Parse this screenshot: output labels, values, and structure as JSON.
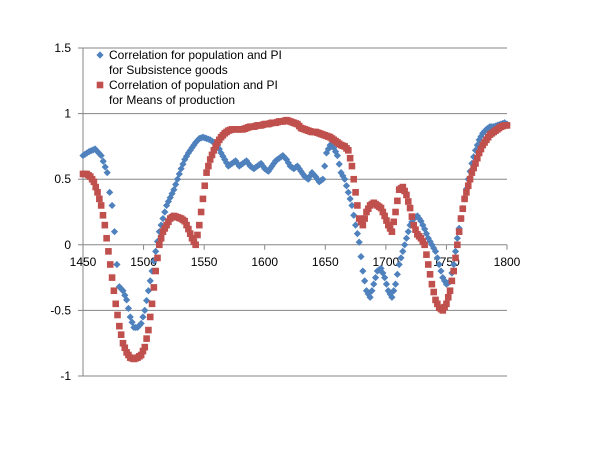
{
  "chart_data": {
    "type": "scatter",
    "title": "",
    "xlabel": "",
    "ylabel": "",
    "xlim": [
      1450,
      1800
    ],
    "ylim": [
      -1,
      1.5
    ],
    "xticks": [
      1450,
      1500,
      1550,
      1600,
      1650,
      1700,
      1750,
      1800
    ],
    "yticks": [
      -1,
      -0.5,
      0,
      0.5,
      1,
      1.5
    ],
    "grid": "horizontal",
    "legend": {
      "position": "top-left",
      "entries": [
        [
          "Correlation for population  and  PI",
          "for Subsistence  goods"
        ],
        [
          "Correlation of population  and  PI",
          "for Means of production"
        ]
      ]
    },
    "series": [
      {
        "name": "Correlation for population  and  PI for Subsistence  goods",
        "marker": "diamond",
        "color": "#4f81bd",
        "x": [
          1450,
          1455,
          1460,
          1465,
          1470,
          1472,
          1474,
          1476,
          1478,
          1480,
          1483,
          1486,
          1489,
          1492,
          1495,
          1498,
          1501,
          1504,
          1507,
          1510,
          1513,
          1516,
          1519,
          1522,
          1525,
          1528,
          1531,
          1534,
          1537,
          1540,
          1543,
          1546,
          1549,
          1552,
          1555,
          1558,
          1561,
          1564,
          1567,
          1570,
          1573,
          1576,
          1579,
          1582,
          1585,
          1588,
          1591,
          1594,
          1597,
          1600,
          1603,
          1606,
          1609,
          1612,
          1615,
          1618,
          1621,
          1624,
          1627,
          1630,
          1633,
          1636,
          1639,
          1642,
          1645,
          1648,
          1651,
          1654,
          1657,
          1660,
          1663,
          1666,
          1669,
          1672,
          1675,
          1678,
          1681,
          1684,
          1687,
          1690,
          1693,
          1696,
          1699,
          1702,
          1705,
          1708,
          1711,
          1714,
          1717,
          1720,
          1723,
          1726,
          1729,
          1732,
          1735,
          1738,
          1741,
          1744,
          1747,
          1750,
          1753,
          1756,
          1759,
          1762,
          1765,
          1768,
          1771,
          1774,
          1777,
          1780,
          1783,
          1786,
          1789,
          1792,
          1795,
          1798,
          1800
        ],
        "y": [
          0.68,
          0.71,
          0.73,
          0.68,
          0.55,
          0.4,
          0.3,
          0.1,
          -0.15,
          -0.32,
          -0.35,
          -0.42,
          -0.55,
          -0.63,
          -0.63,
          -0.6,
          -0.5,
          -0.35,
          -0.2,
          -0.05,
          0.1,
          0.2,
          0.3,
          0.36,
          0.42,
          0.5,
          0.58,
          0.65,
          0.7,
          0.74,
          0.78,
          0.81,
          0.82,
          0.81,
          0.8,
          0.78,
          0.76,
          0.7,
          0.65,
          0.6,
          0.62,
          0.64,
          0.6,
          0.62,
          0.64,
          0.6,
          0.58,
          0.6,
          0.62,
          0.58,
          0.56,
          0.6,
          0.64,
          0.66,
          0.68,
          0.65,
          0.6,
          0.58,
          0.6,
          0.56,
          0.52,
          0.5,
          0.55,
          0.52,
          0.48,
          0.5,
          0.7,
          0.76,
          0.74,
          0.68,
          0.55,
          0.5,
          0.4,
          0.3,
          0.15,
          0.02,
          -0.2,
          -0.35,
          -0.4,
          -0.3,
          -0.2,
          -0.18,
          -0.25,
          -0.35,
          -0.4,
          -0.3,
          -0.15,
          -0.05,
          0.05,
          0.15,
          0.2,
          0.22,
          0.18,
          0.12,
          0.05,
          0.0,
          -0.05,
          -0.15,
          -0.25,
          -0.3,
          -0.28,
          -0.15,
          0.05,
          0.2,
          0.35,
          0.5,
          0.62,
          0.72,
          0.8,
          0.85,
          0.88,
          0.9,
          0.9,
          0.91,
          0.92,
          0.93,
          0.92
        ]
      },
      {
        "name": "Correlation of population  and  PI for Means of production",
        "marker": "square",
        "color": "#c0504d",
        "x": [
          1450,
          1453,
          1456,
          1459,
          1462,
          1465,
          1468,
          1471,
          1474,
          1477,
          1480,
          1483,
          1486,
          1489,
          1492,
          1495,
          1498,
          1501,
          1504,
          1507,
          1510,
          1513,
          1516,
          1519,
          1522,
          1525,
          1528,
          1531,
          1534,
          1537,
          1540,
          1543,
          1546,
          1549,
          1552,
          1555,
          1558,
          1561,
          1564,
          1567,
          1570,
          1573,
          1576,
          1579,
          1582,
          1585,
          1588,
          1591,
          1594,
          1597,
          1600,
          1603,
          1606,
          1609,
          1612,
          1615,
          1618,
          1621,
          1624,
          1627,
          1630,
          1633,
          1636,
          1639,
          1642,
          1645,
          1648,
          1651,
          1654,
          1657,
          1660,
          1663,
          1666,
          1669,
          1672,
          1675,
          1678,
          1681,
          1684,
          1687,
          1690,
          1693,
          1696,
          1699,
          1702,
          1705,
          1708,
          1711,
          1714,
          1717,
          1720,
          1723,
          1726,
          1729,
          1732,
          1735,
          1738,
          1741,
          1744,
          1747,
          1750,
          1753,
          1756,
          1759,
          1762,
          1765,
          1768,
          1771,
          1774,
          1777,
          1780,
          1783,
          1786,
          1789,
          1792,
          1795,
          1798,
          1800
        ],
        "y": [
          0.54,
          0.54,
          0.52,
          0.48,
          0.4,
          0.3,
          0.15,
          -0.05,
          -0.25,
          -0.45,
          -0.62,
          -0.75,
          -0.82,
          -0.86,
          -0.87,
          -0.86,
          -0.84,
          -0.78,
          -0.65,
          -0.45,
          -0.2,
          0.0,
          0.1,
          0.15,
          0.2,
          0.22,
          0.21,
          0.2,
          0.18,
          0.12,
          0.05,
          0.0,
          0.15,
          0.35,
          0.55,
          0.65,
          0.72,
          0.78,
          0.82,
          0.85,
          0.87,
          0.88,
          0.88,
          0.88,
          0.88,
          0.89,
          0.9,
          0.9,
          0.91,
          0.91,
          0.92,
          0.92,
          0.93,
          0.93,
          0.94,
          0.94,
          0.95,
          0.94,
          0.93,
          0.92,
          0.89,
          0.88,
          0.87,
          0.86,
          0.86,
          0.85,
          0.84,
          0.83,
          0.82,
          0.8,
          0.78,
          0.76,
          0.75,
          0.72,
          0.6,
          0.4,
          0.2,
          0.15,
          0.25,
          0.3,
          0.32,
          0.3,
          0.28,
          0.22,
          0.15,
          0.1,
          0.25,
          0.42,
          0.44,
          0.38,
          0.28,
          0.15,
          0.08,
          0.05,
          0.0,
          -0.15,
          -0.3,
          -0.42,
          -0.48,
          -0.5,
          -0.45,
          -0.35,
          -0.2,
          0.0,
          0.2,
          0.35,
          0.45,
          0.55,
          0.62,
          0.7,
          0.76,
          0.8,
          0.84,
          0.86,
          0.88,
          0.9,
          0.91,
          0.91
        ]
      }
    ]
  }
}
